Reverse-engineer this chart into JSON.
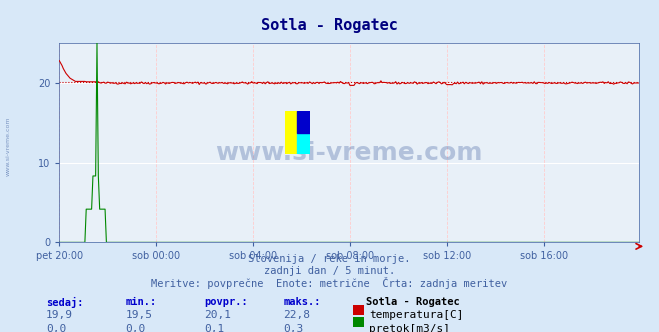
{
  "title": "Sotla - Rogatec",
  "bg_color": "#d8e8f8",
  "plot_bg_color": "#e8f0f8",
  "grid_color_major": "#ffffff",
  "grid_color_minor": "#ffcccc",
  "title_color": "#000080",
  "text_color": "#4060a0",
  "xlabel_ticks": [
    "pet 20:00",
    "sob 00:00",
    "sob 04:00",
    "sob 08:00",
    "sob 12:00",
    "sob 16:00"
  ],
  "tick_positions": [
    0,
    72,
    144,
    216,
    288,
    360
  ],
  "total_points": 432,
  "ylim": [
    0,
    25
  ],
  "yticks": [
    0,
    10,
    20
  ],
  "temp_color": "#cc0000",
  "flow_color": "#008800",
  "avg_line_color": "#cc0000",
  "avg_value": 20.1,
  "subtitle_line1": "Slovenija / reke in morje.",
  "subtitle_line2": "zadnji dan / 5 minut.",
  "subtitle_line3": "Meritve: povprečne  Enote: metrične  Črta: zadnja meritev",
  "legend_title": "Sotla - Rogatec",
  "stat_headers": [
    "sedaj:",
    "min.:",
    "povpr.:",
    "maks.:"
  ],
  "stat_temp": [
    "19,9",
    "19,5",
    "20,1",
    "22,8"
  ],
  "stat_flow": [
    "0,0",
    "0,0",
    "0,1",
    "0,3"
  ],
  "legend_temp": "temperatura[C]",
  "legend_flow": "pretok[m3/s]",
  "watermark": "www.si-vreme.com",
  "watermark_color": "#4060a0",
  "sidebar_text": "www.si-vreme.com"
}
